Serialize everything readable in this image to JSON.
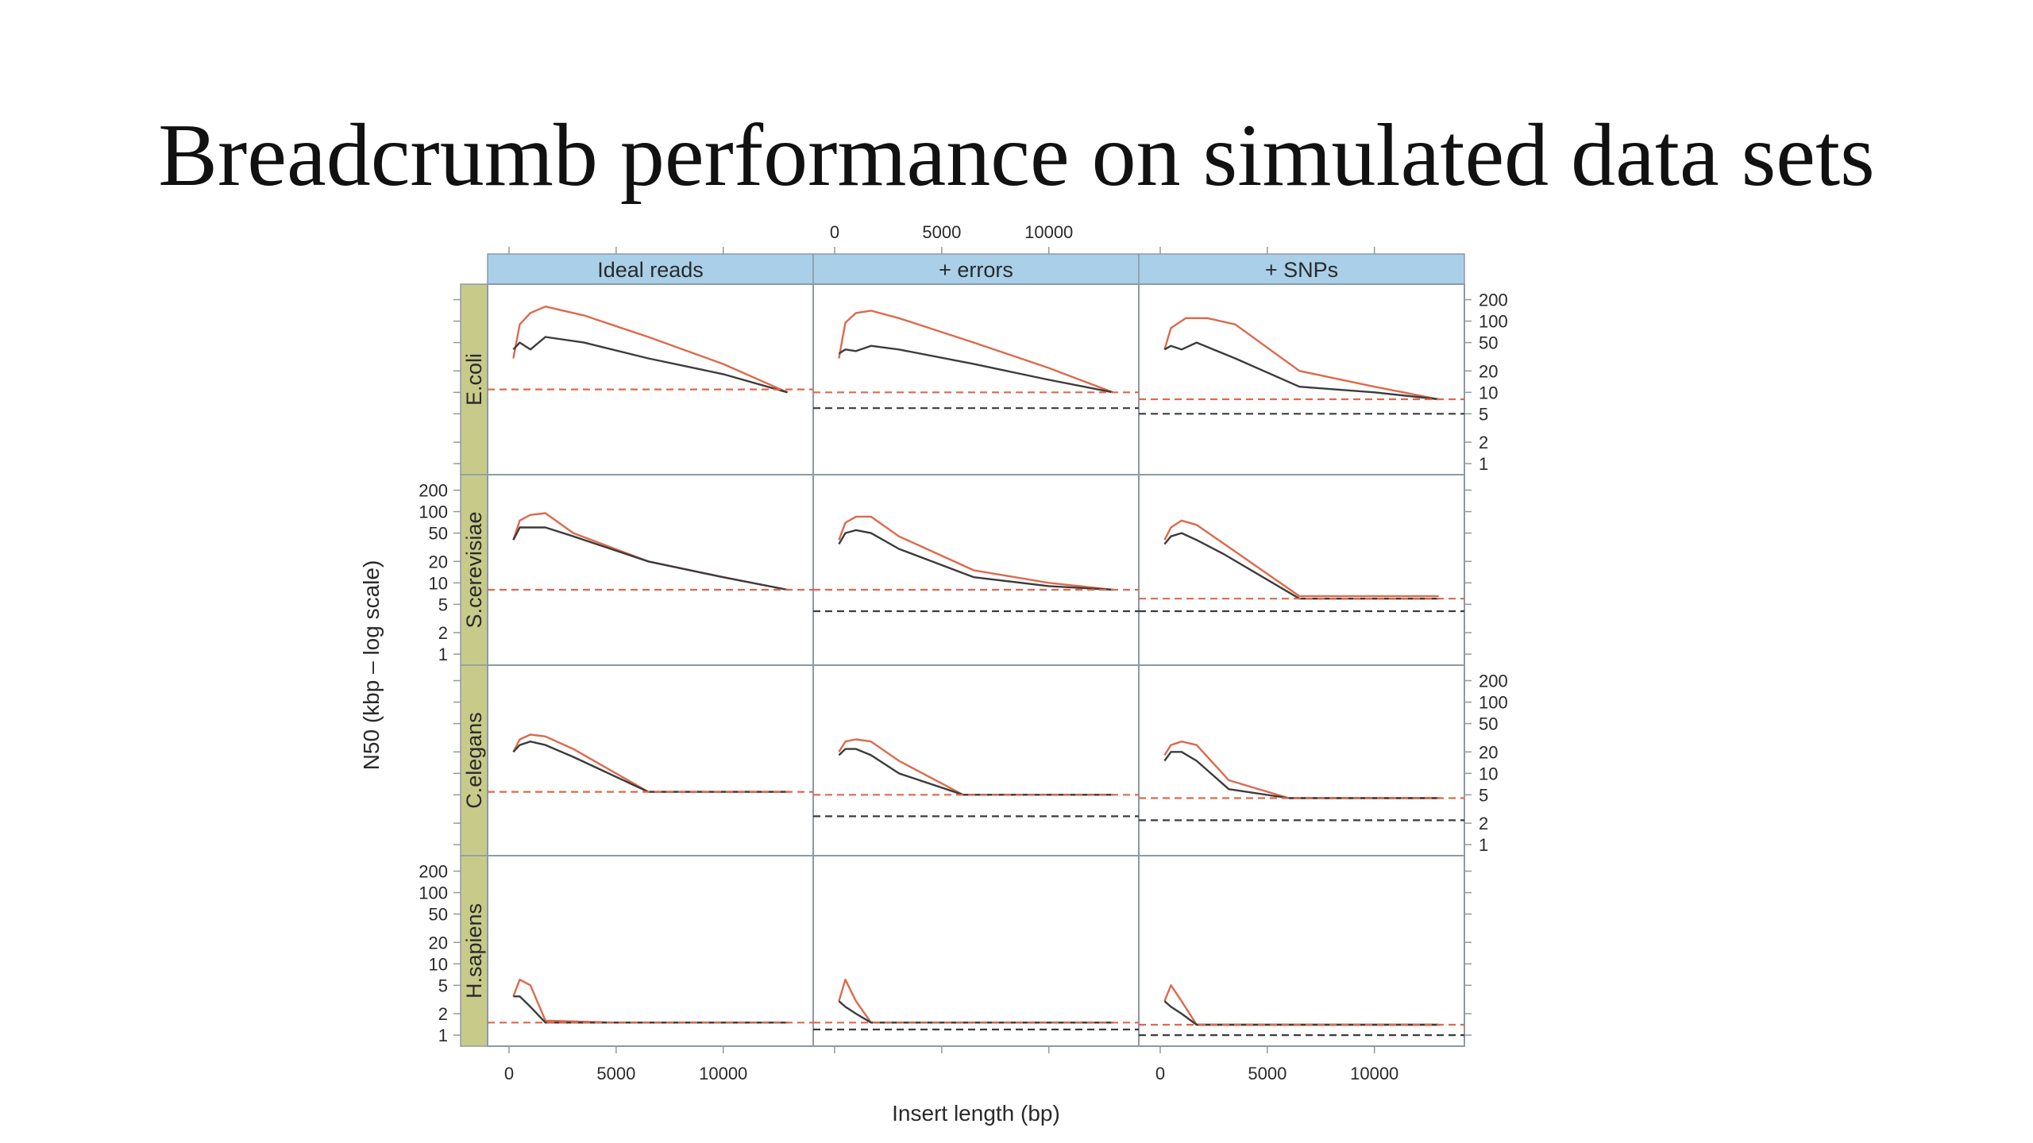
{
  "slide": {
    "title": "Breadcrumb performance on simulated data sets"
  },
  "colors": {
    "strip_top": "#a9cfe9",
    "strip_side": "#c8ca8a",
    "panel_border": "#8d9aa4",
    "breadcrumb_line": "#dc6a4c",
    "baseline_line": "#3c3c3c"
  },
  "chart_data": {
    "type": "line",
    "xlabel": "Insert length (bp)",
    "ylabel": "N50 (kbp – log scale)",
    "xlim": [
      -1000,
      14200
    ],
    "ylim": [
      0.7,
      330
    ],
    "y_scale": "log",
    "x_ticks": [
      0,
      5000,
      10000
    ],
    "x_tick_labels": [
      "0",
      "5000",
      "10000"
    ],
    "y_ticks": [
      1,
      2,
      5,
      10,
      20,
      50,
      100,
      200
    ],
    "y_tick_labels": [
      "1",
      "2",
      "5",
      "10",
      "20",
      "50",
      "100",
      "200"
    ],
    "columns": [
      "Ideal reads",
      "+ errors",
      "+ SNPs"
    ],
    "rows": [
      "E.coli",
      "S.cerevisiae",
      "C.elegans",
      "H.sapiens"
    ],
    "panels": [
      {
        "row": "E.coli",
        "column": "Ideal reads",
        "series": [
          {
            "color": "breadcrumb",
            "x": [
              200,
              500,
              1000,
              1700,
              3500,
              6500,
              10000,
              13000
            ],
            "y": [
              30,
              90,
              130,
              160,
              120,
              60,
              25,
              10
            ]
          },
          {
            "color": "baseline",
            "x": [
              200,
              500,
              1000,
              1700,
              3500,
              6500,
              10000,
              13000
            ],
            "y": [
              40,
              50,
              40,
              60,
              50,
              30,
              18,
              10
            ]
          },
          {
            "color": "breadcrumb",
            "style": "dashed",
            "x": [
              -1000,
              14200
            ],
            "y": [
              11,
              11
            ]
          }
        ]
      },
      {
        "row": "E.coli",
        "column": "+ errors",
        "series": [
          {
            "color": "breadcrumb",
            "x": [
              200,
              500,
              1000,
              1700,
              3000,
              6500,
              10000,
              13000
            ],
            "y": [
              30,
              95,
              130,
              140,
              110,
              50,
              22,
              10
            ]
          },
          {
            "color": "baseline",
            "x": [
              200,
              500,
              1000,
              1700,
              3000,
              6500,
              10000,
              13000
            ],
            "y": [
              35,
              40,
              38,
              45,
              40,
              25,
              15,
              10
            ]
          },
          {
            "color": "breadcrumb",
            "style": "dashed",
            "x": [
              -1000,
              14200
            ],
            "y": [
              10,
              10
            ]
          },
          {
            "color": "baseline",
            "style": "dashed",
            "x": [
              -1000,
              14200
            ],
            "y": [
              6,
              6
            ]
          }
        ]
      },
      {
        "row": "E.coli",
        "column": "+ SNPs",
        "series": [
          {
            "color": "breadcrumb",
            "x": [
              200,
              500,
              1200,
              2200,
              3500,
              6500,
              10000,
              13000
            ],
            "y": [
              40,
              80,
              110,
              110,
              90,
              20,
              12,
              8
            ]
          },
          {
            "color": "baseline",
            "x": [
              200,
              500,
              1000,
              1700,
              3500,
              6500,
              10000,
              13000
            ],
            "y": [
              40,
              45,
              40,
              50,
              30,
              12,
              10,
              8
            ]
          },
          {
            "color": "breadcrumb",
            "style": "dashed",
            "x": [
              -1000,
              14200
            ],
            "y": [
              8,
              8
            ]
          },
          {
            "color": "baseline",
            "style": "dashed",
            "x": [
              -1000,
              14200
            ],
            "y": [
              5,
              5
            ]
          }
        ]
      },
      {
        "row": "S.cerevisiae",
        "column": "Ideal reads",
        "series": [
          {
            "color": "breadcrumb",
            "x": [
              200,
              500,
              1000,
              1700,
              3000,
              6500,
              10000,
              13000
            ],
            "y": [
              40,
              75,
              90,
              95,
              50,
              20,
              12,
              8
            ]
          },
          {
            "color": "baseline",
            "x": [
              200,
              500,
              1000,
              1700,
              3000,
              6500,
              10000,
              13000
            ],
            "y": [
              40,
              60,
              60,
              60,
              45,
              20,
              12,
              8
            ]
          },
          {
            "color": "breadcrumb",
            "style": "dashed",
            "x": [
              -1000,
              14200
            ],
            "y": [
              8,
              8
            ]
          }
        ]
      },
      {
        "row": "S.cerevisiae",
        "column": "+ errors",
        "series": [
          {
            "color": "breadcrumb",
            "x": [
              200,
              500,
              1000,
              1700,
              3000,
              6500,
              10000,
              13000
            ],
            "y": [
              40,
              70,
              85,
              85,
              45,
              15,
              10,
              8
            ]
          },
          {
            "color": "baseline",
            "x": [
              200,
              500,
              1000,
              1700,
              3000,
              6500,
              10000,
              13000
            ],
            "y": [
              35,
              50,
              55,
              50,
              30,
              12,
              9,
              8
            ]
          },
          {
            "color": "breadcrumb",
            "style": "dashed",
            "x": [
              -1000,
              14200
            ],
            "y": [
              8,
              8
            ]
          },
          {
            "color": "baseline",
            "style": "dashed",
            "x": [
              -1000,
              14200
            ],
            "y": [
              4,
              4
            ]
          }
        ]
      },
      {
        "row": "S.cerevisiae",
        "column": "+ SNPs",
        "series": [
          {
            "color": "breadcrumb",
            "x": [
              200,
              500,
              1000,
              1700,
              3000,
              6500,
              10000,
              13000
            ],
            "y": [
              40,
              60,
              75,
              65,
              35,
              6.5,
              6.5,
              6.5
            ]
          },
          {
            "color": "baseline",
            "x": [
              200,
              500,
              1000,
              1700,
              3000,
              6500,
              10000,
              13000
            ],
            "y": [
              35,
              45,
              50,
              40,
              25,
              6,
              6,
              6
            ]
          },
          {
            "color": "breadcrumb",
            "style": "dashed",
            "x": [
              -1000,
              14200
            ],
            "y": [
              6,
              6
            ]
          },
          {
            "color": "baseline",
            "style": "dashed",
            "x": [
              -1000,
              14200
            ],
            "y": [
              4,
              4
            ]
          }
        ]
      },
      {
        "row": "C.elegans",
        "column": "Ideal reads",
        "series": [
          {
            "color": "breadcrumb",
            "x": [
              200,
              500,
              1000,
              1700,
              3000,
              6500,
              10000,
              13000
            ],
            "y": [
              20,
              30,
              35,
              33,
              22,
              5.5,
              5.5,
              5.5
            ]
          },
          {
            "color": "baseline",
            "x": [
              200,
              500,
              1000,
              1700,
              3000,
              6500,
              10000,
              13000
            ],
            "y": [
              20,
              25,
              28,
              25,
              17,
              5.5,
              5.5,
              5.5
            ]
          },
          {
            "color": "breadcrumb",
            "style": "dashed",
            "x": [
              -1000,
              14200
            ],
            "y": [
              5.5,
              5.5
            ]
          }
        ]
      },
      {
        "row": "C.elegans",
        "column": "+ errors",
        "series": [
          {
            "color": "breadcrumb",
            "x": [
              200,
              500,
              1000,
              1700,
              3000,
              6000,
              10000,
              13000
            ],
            "y": [
              20,
              28,
              30,
              28,
              15,
              5,
              5,
              5
            ]
          },
          {
            "color": "baseline",
            "x": [
              200,
              500,
              1000,
              1700,
              3000,
              6000,
              10000,
              13000
            ],
            "y": [
              18,
              22,
              22,
              18,
              10,
              5,
              5,
              5
            ]
          },
          {
            "color": "breadcrumb",
            "style": "dashed",
            "x": [
              -1000,
              14200
            ],
            "y": [
              5,
              5
            ]
          },
          {
            "color": "baseline",
            "style": "dashed",
            "x": [
              -1000,
              14200
            ],
            "y": [
              2.5,
              2.5
            ]
          }
        ]
      },
      {
        "row": "C.elegans",
        "column": "+ SNPs",
        "series": [
          {
            "color": "breadcrumb",
            "x": [
              200,
              500,
              1000,
              1700,
              3200,
              6000,
              10000,
              13000
            ],
            "y": [
              18,
              25,
              28,
              25,
              8,
              4.5,
              4.5,
              4.5
            ]
          },
          {
            "color": "baseline",
            "x": [
              200,
              500,
              1000,
              1700,
              3200,
              6000,
              10000,
              13000
            ],
            "y": [
              15,
              20,
              20,
              15,
              6,
              4.5,
              4.5,
              4.5
            ]
          },
          {
            "color": "breadcrumb",
            "style": "dashed",
            "x": [
              -1000,
              14200
            ],
            "y": [
              4.5,
              4.5
            ]
          },
          {
            "color": "baseline",
            "style": "dashed",
            "x": [
              -1000,
              14200
            ],
            "y": [
              2.2,
              2.2
            ]
          }
        ]
      },
      {
        "row": "H.sapiens",
        "column": "Ideal reads",
        "series": [
          {
            "color": "breadcrumb",
            "x": [
              200,
              500,
              1000,
              1700,
              5000,
              13000
            ],
            "y": [
              3.5,
              6,
              5,
              1.6,
              1.5,
              1.5
            ]
          },
          {
            "color": "baseline",
            "x": [
              200,
              500,
              1000,
              1700,
              5000,
              13000
            ],
            "y": [
              3.5,
              3.5,
              2.5,
              1.5,
              1.5,
              1.5
            ]
          },
          {
            "color": "breadcrumb",
            "style": "dashed",
            "x": [
              -1000,
              14200
            ],
            "y": [
              1.5,
              1.5
            ]
          }
        ]
      },
      {
        "row": "H.sapiens",
        "column": "+ errors",
        "series": [
          {
            "color": "breadcrumb",
            "x": [
              200,
              500,
              1000,
              1700,
              13000
            ],
            "y": [
              3,
              6,
              3,
              1.5,
              1.5
            ]
          },
          {
            "color": "baseline",
            "x": [
              200,
              500,
              1000,
              1700,
              13000
            ],
            "y": [
              3,
              2.5,
              2,
              1.5,
              1.5
            ]
          },
          {
            "color": "breadcrumb",
            "style": "dashed",
            "x": [
              -1000,
              14200
            ],
            "y": [
              1.5,
              1.5
            ]
          },
          {
            "color": "baseline",
            "style": "dashed",
            "x": [
              -1000,
              14200
            ],
            "y": [
              1.2,
              1.2
            ]
          }
        ]
      },
      {
        "row": "H.sapiens",
        "column": "+ SNPs",
        "series": [
          {
            "color": "breadcrumb",
            "x": [
              200,
              500,
              1000,
              1700,
              13000
            ],
            "y": [
              3,
              5,
              3,
              1.4,
              1.4
            ]
          },
          {
            "color": "baseline",
            "x": [
              200,
              500,
              1000,
              1700,
              13000
            ],
            "y": [
              3,
              2.5,
              2,
              1.4,
              1.4
            ]
          },
          {
            "color": "breadcrumb",
            "style": "dashed",
            "x": [
              -1000,
              14200
            ],
            "y": [
              1.4,
              1.4
            ]
          },
          {
            "color": "baseline",
            "style": "dashed",
            "x": [
              -1000,
              14200
            ],
            "y": [
              1,
              1
            ]
          }
        ]
      }
    ]
  }
}
